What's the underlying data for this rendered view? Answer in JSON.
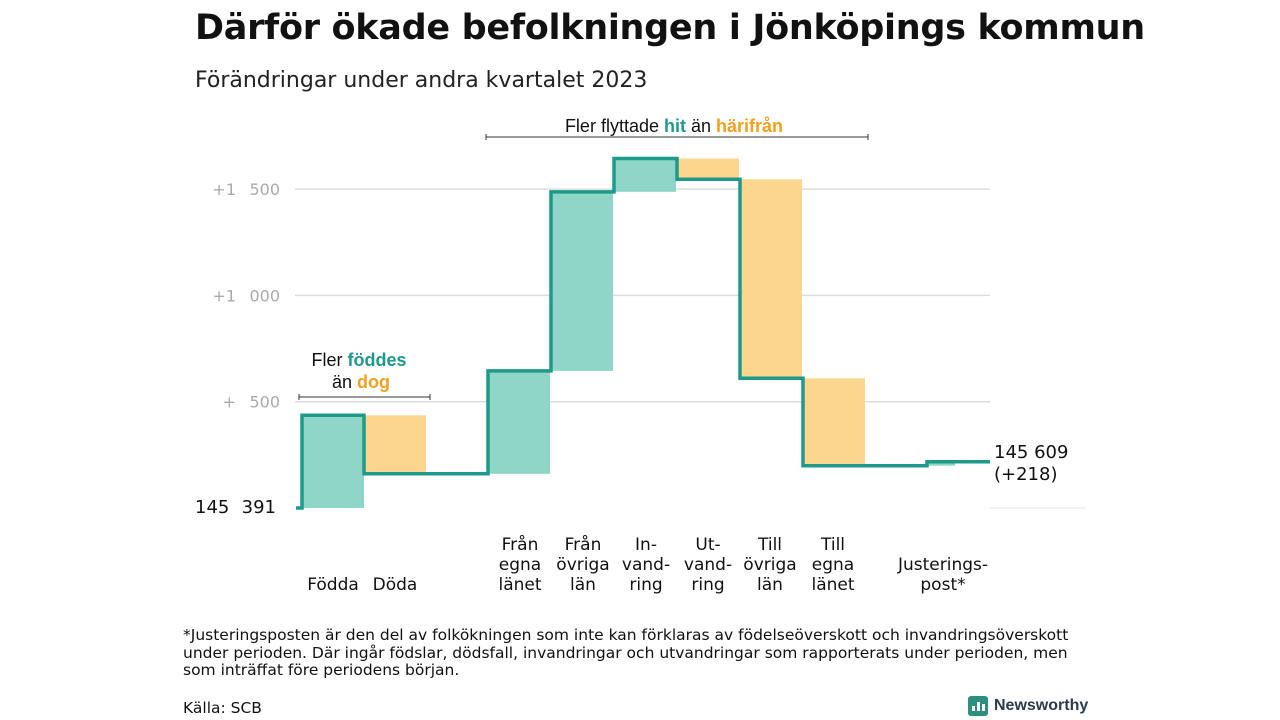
{
  "title": "Därför ökade befolkningen i Jönköpings kommun",
  "subtitle": "Förändringar under andra kvartalet 2023",
  "chart_data": {
    "type": "waterfall",
    "start_value": 145391,
    "start_label": "145 391",
    "end_value": 145609,
    "end_label": "145 609",
    "end_change_label": "(+218)",
    "y_ticks": [
      {
        "value": 145891,
        "label": "+ 500"
      },
      {
        "value": 146391,
        "label": "+1 000"
      },
      {
        "value": 146891,
        "label": "+1 500"
      }
    ],
    "grid": true,
    "steps": [
      {
        "label": [
          "Födda"
        ],
        "change": 436,
        "kind": "in"
      },
      {
        "label": [
          "Döda"
        ],
        "change": -275,
        "kind": "out"
      },
      {
        "label": [
          "Från",
          "egna",
          "länet"
        ],
        "change": 484,
        "kind": "in"
      },
      {
        "label": [
          "Från",
          "övriga",
          "län"
        ],
        "change": 842,
        "kind": "in"
      },
      {
        "label": [
          "In-",
          "vand-",
          "ring"
        ],
        "change": 157,
        "kind": "in"
      },
      {
        "label": [
          "Ut-",
          "vand-",
          "ring"
        ],
        "change": -98,
        "kind": "out"
      },
      {
        "label": [
          "Till",
          "övriga",
          "län"
        ],
        "change": -936,
        "kind": "out"
      },
      {
        "label": [
          "Till",
          "egna",
          "länet"
        ],
        "change": -411,
        "kind": "out"
      },
      {
        "label": [
          "Justerings-",
          "post*"
        ],
        "change": 19,
        "kind": "in"
      }
    ],
    "annotations": {
      "natural": {
        "line1": "Fler ",
        "accent1": "föddes",
        "line2": "än ",
        "accent2": "dog"
      },
      "migration": {
        "text1": "Fler flyttade ",
        "accent1": "hit",
        "text2": " än ",
        "accent2": "härifrån"
      }
    },
    "colors": {
      "in": "#8fd6c9",
      "out": "#fcd68f",
      "line": "#1f9a8a",
      "in_text": "#1f9a8a",
      "out_text": "#f2a01f",
      "grid": "#dddddd",
      "tick": "#aaaaaa"
    }
  },
  "footnote": "*Justeringsposten är den del av folkökningen som inte kan förklaras av födelseöverskott och invandringsöverskott under perioden. Där ingår födslar, dödsfall, invandringar och utvandringar som rapporterats under perioden, men som inträffat före periodens början.",
  "source": "Källa: SCB",
  "logo": {
    "name": "Newsworthy",
    "icon": "bar-chart-icon"
  }
}
